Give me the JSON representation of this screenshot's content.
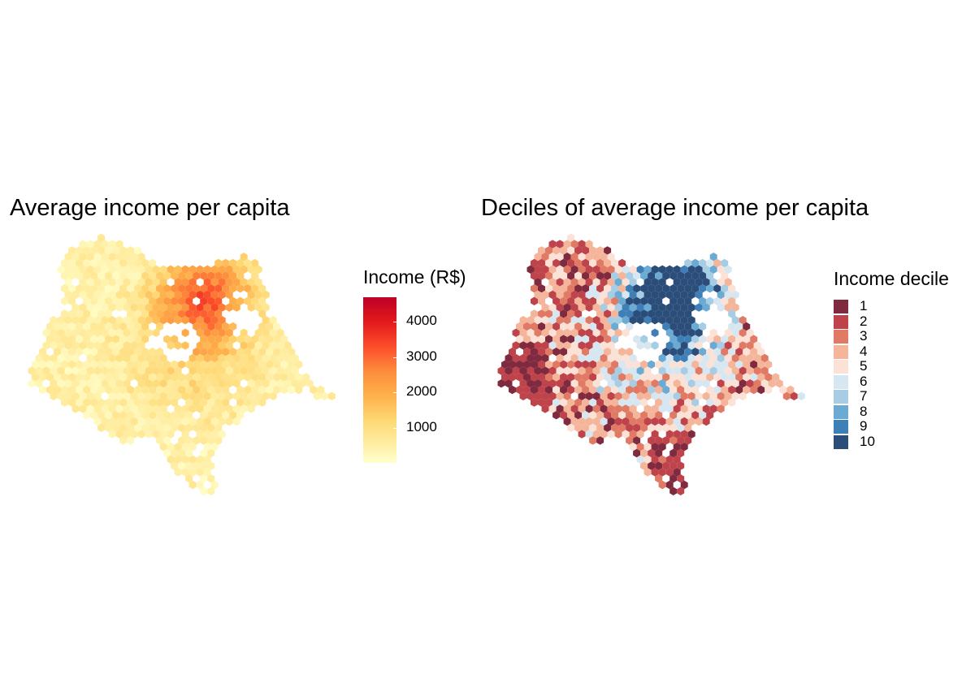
{
  "left_panel": {
    "title": "Average income per capita",
    "legend": {
      "title": "Income (R$)",
      "ticks": [
        {
          "label": "4000",
          "value": 4000
        },
        {
          "label": "3000",
          "value": 3000
        },
        {
          "label": "2000",
          "value": 2000
        },
        {
          "label": "1000",
          "value": 1000
        }
      ],
      "range": [
        0,
        4700
      ],
      "colors": [
        "#ffffcc",
        "#ffeda0",
        "#fed976",
        "#feb24c",
        "#fd8d3c",
        "#fc4e2a",
        "#e31a1c",
        "#bd0026"
      ]
    }
  },
  "right_panel": {
    "title": "Deciles of average income per capita",
    "legend": {
      "title": "Income decile",
      "items": [
        {
          "label": "1",
          "color": "#7f2a3f"
        },
        {
          "label": "2",
          "color": "#be434a"
        },
        {
          "label": "3",
          "color": "#e07a65"
        },
        {
          "label": "4",
          "color": "#f4b59b"
        },
        {
          "label": "5",
          "color": "#fbe1d6"
        },
        {
          "label": "6",
          "color": "#d6e7f1"
        },
        {
          "label": "7",
          "color": "#a6cde3"
        },
        {
          "label": "8",
          "color": "#6aaad3"
        },
        {
          "label": "9",
          "color": "#3f7fb8"
        },
        {
          "label": "10",
          "color": "#2a4d7a"
        }
      ]
    }
  }
}
